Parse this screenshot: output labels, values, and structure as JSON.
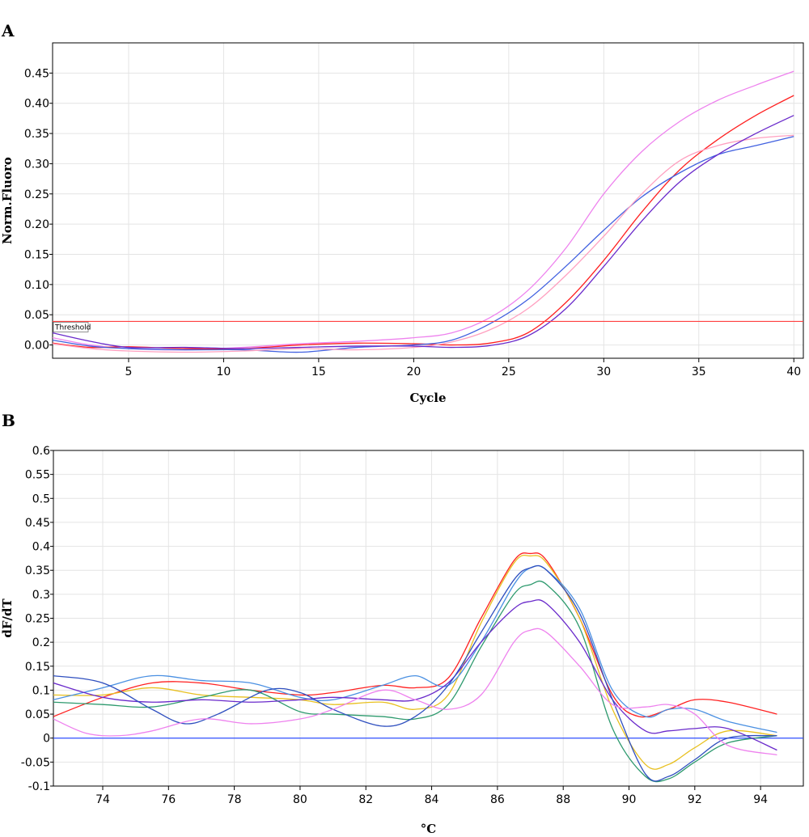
{
  "panels": {
    "a_label": "A",
    "b_label": "B"
  },
  "chart_data": [
    {
      "type": "line",
      "xlabel": "Cycle",
      "ylabel": "Norm.Fluoro",
      "xlim": [
        1,
        40.5
      ],
      "ylim": [
        -0.022,
        0.5
      ],
      "x_ticks": [
        5,
        10,
        15,
        20,
        25,
        30,
        35,
        40
      ],
      "y_ticks": [
        0.0,
        0.05,
        0.1,
        0.15,
        0.2,
        0.25,
        0.3,
        0.35,
        0.4,
        0.45
      ],
      "y_tick_labels": [
        "0.00",
        "0.05",
        "0.10",
        "0.15",
        "0.20",
        "0.25",
        "0.30",
        "0.35",
        "0.40",
        "0.45"
      ],
      "grid": true,
      "threshold": {
        "label": "Threshold",
        "value": 0.039,
        "color": "#ff4040"
      },
      "series": [
        {
          "color": "#ee82ee",
          "points": [
            [
              1,
              0.012
            ],
            [
              3,
              0.0
            ],
            [
              5,
              -0.006
            ],
            [
              8,
              -0.008
            ],
            [
              11,
              -0.004
            ],
            [
              14,
              0.002
            ],
            [
              17,
              0.006
            ],
            [
              20,
              0.012
            ],
            [
              22,
              0.02
            ],
            [
              24,
              0.045
            ],
            [
              26,
              0.09
            ],
            [
              28,
              0.16
            ],
            [
              30,
              0.25
            ],
            [
              32,
              0.32
            ],
            [
              34,
              0.37
            ],
            [
              36,
              0.405
            ],
            [
              38,
              0.43
            ],
            [
              40,
              0.453
            ]
          ]
        },
        {
          "color": "#ff2020",
          "points": [
            [
              1,
              0.003
            ],
            [
              3,
              -0.004
            ],
            [
              5,
              -0.003
            ],
            [
              8,
              -0.006
            ],
            [
              11,
              -0.006
            ],
            [
              14,
              0.0
            ],
            [
              17,
              0.003
            ],
            [
              20,
              0.002
            ],
            [
              22,
              0.0
            ],
            [
              24,
              0.003
            ],
            [
              26,
              0.02
            ],
            [
              28,
              0.07
            ],
            [
              30,
              0.14
            ],
            [
              32,
              0.22
            ],
            [
              34,
              0.29
            ],
            [
              36,
              0.34
            ],
            [
              38,
              0.38
            ],
            [
              40,
              0.413
            ]
          ]
        },
        {
          "color": "#4060e0",
          "points": [
            [
              1,
              0.008
            ],
            [
              3,
              -0.002
            ],
            [
              5,
              -0.006
            ],
            [
              8,
              -0.008
            ],
            [
              11,
              -0.008
            ],
            [
              14,
              -0.012
            ],
            [
              17,
              -0.004
            ],
            [
              20,
              0.0
            ],
            [
              22,
              0.008
            ],
            [
              24,
              0.035
            ],
            [
              26,
              0.075
            ],
            [
              28,
              0.13
            ],
            [
              30,
              0.19
            ],
            [
              32,
              0.245
            ],
            [
              34,
              0.285
            ],
            [
              36,
              0.315
            ],
            [
              38,
              0.33
            ],
            [
              40,
              0.345
            ]
          ]
        },
        {
          "color": "#ffa0c0",
          "points": [
            [
              1,
              0.002
            ],
            [
              3,
              -0.006
            ],
            [
              5,
              -0.01
            ],
            [
              8,
              -0.012
            ],
            [
              11,
              -0.01
            ],
            [
              14,
              -0.006
            ],
            [
              17,
              -0.008
            ],
            [
              20,
              -0.004
            ],
            [
              22,
              0.005
            ],
            [
              24,
              0.025
            ],
            [
              26,
              0.06
            ],
            [
              28,
              0.115
            ],
            [
              30,
              0.18
            ],
            [
              32,
              0.25
            ],
            [
              34,
              0.305
            ],
            [
              36,
              0.33
            ],
            [
              38,
              0.342
            ],
            [
              40,
              0.347
            ]
          ]
        },
        {
          "color": "#6a2acb",
          "points": [
            [
              1,
              0.02
            ],
            [
              3,
              0.006
            ],
            [
              5,
              -0.004
            ],
            [
              8,
              -0.004
            ],
            [
              11,
              -0.006
            ],
            [
              14,
              -0.004
            ],
            [
              17,
              -0.002
            ],
            [
              20,
              -0.002
            ],
            [
              22,
              -0.004
            ],
            [
              24,
              -0.001
            ],
            [
              26,
              0.015
            ],
            [
              28,
              0.06
            ],
            [
              30,
              0.13
            ],
            [
              32,
              0.205
            ],
            [
              34,
              0.27
            ],
            [
              36,
              0.315
            ],
            [
              38,
              0.35
            ],
            [
              40,
              0.38
            ]
          ]
        }
      ]
    },
    {
      "type": "line",
      "xlabel": "°C",
      "ylabel": "dF/dT",
      "xlim": [
        72.5,
        95.3
      ],
      "ylim": [
        -0.1,
        0.6
      ],
      "x_ticks": [
        74,
        76,
        78,
        80,
        82,
        84,
        86,
        88,
        90,
        92,
        94
      ],
      "y_ticks": [
        -0.1,
        -0.05,
        0,
        0.05,
        0.1,
        0.15,
        0.2,
        0.25,
        0.3,
        0.35,
        0.4,
        0.45,
        0.5,
        0.55,
        0.6
      ],
      "y_tick_labels": [
        "-0.1",
        "-0.05",
        "0",
        "0.05",
        "0.1",
        "0.15",
        "0.2",
        "0.25",
        "0.3",
        "0.35",
        "0.4",
        "0.45",
        "0.5",
        "0.55",
        "0.6"
      ],
      "grid": true,
      "baseline": {
        "value": 0,
        "color": "#3050ff"
      },
      "series": [
        {
          "color": "#ff2020",
          "points": [
            [
              72.5,
              0.045
            ],
            [
              74,
              0.085
            ],
            [
              75.5,
              0.115
            ],
            [
              77,
              0.115
            ],
            [
              78.5,
              0.1
            ],
            [
              80,
              0.09
            ],
            [
              81,
              0.095
            ],
            [
              82.5,
              0.11
            ],
            [
              83.5,
              0.105
            ],
            [
              84.5,
              0.125
            ],
            [
              85.5,
              0.25
            ],
            [
              86.5,
              0.37
            ],
            [
              87,
              0.385
            ],
            [
              87.5,
              0.37
            ],
            [
              88.5,
              0.25
            ],
            [
              89.5,
              0.09
            ],
            [
              90.3,
              0.045
            ],
            [
              91.2,
              0.06
            ],
            [
              92,
              0.08
            ],
            [
              93,
              0.075
            ],
            [
              94.5,
              0.05
            ]
          ]
        },
        {
          "color": "#e8c020",
          "points": [
            [
              72.5,
              0.09
            ],
            [
              74,
              0.09
            ],
            [
              75.5,
              0.105
            ],
            [
              77,
              0.09
            ],
            [
              78.5,
              0.085
            ],
            [
              80,
              0.08
            ],
            [
              81,
              0.07
            ],
            [
              82.5,
              0.075
            ],
            [
              83.5,
              0.06
            ],
            [
              84.5,
              0.09
            ],
            [
              85.5,
              0.24
            ],
            [
              86.5,
              0.365
            ],
            [
              87,
              0.38
            ],
            [
              87.5,
              0.365
            ],
            [
              88.5,
              0.25
            ],
            [
              89.5,
              0.06
            ],
            [
              90.5,
              -0.055
            ],
            [
              91.2,
              -0.055
            ],
            [
              92,
              -0.02
            ],
            [
              93,
              0.015
            ],
            [
              94.5,
              0.005
            ]
          ]
        },
        {
          "color": "#4a90e2",
          "points": [
            [
              72.5,
              0.08
            ],
            [
              74,
              0.105
            ],
            [
              75.5,
              0.13
            ],
            [
              77,
              0.12
            ],
            [
              78.5,
              0.115
            ],
            [
              80,
              0.085
            ],
            [
              81,
              0.08
            ],
            [
              82.5,
              0.11
            ],
            [
              83.5,
              0.13
            ],
            [
              84.5,
              0.11
            ],
            [
              85.5,
              0.2
            ],
            [
              86.5,
              0.32
            ],
            [
              87,
              0.355
            ],
            [
              87.5,
              0.35
            ],
            [
              88.5,
              0.27
            ],
            [
              89.5,
              0.1
            ],
            [
              90.5,
              0.045
            ],
            [
              91.2,
              0.06
            ],
            [
              92,
              0.06
            ],
            [
              93,
              0.035
            ],
            [
              94.5,
              0.012
            ]
          ]
        },
        {
          "color": "#2e9a6e",
          "points": [
            [
              72.5,
              0.075
            ],
            [
              74,
              0.07
            ],
            [
              75.5,
              0.065
            ],
            [
              77,
              0.085
            ],
            [
              78.5,
              0.1
            ],
            [
              80,
              0.055
            ],
            [
              81,
              0.05
            ],
            [
              82.5,
              0.045
            ],
            [
              83.5,
              0.04
            ],
            [
              84.5,
              0.07
            ],
            [
              85.5,
              0.19
            ],
            [
              86.5,
              0.3
            ],
            [
              87,
              0.32
            ],
            [
              87.5,
              0.32
            ],
            [
              88.5,
              0.23
            ],
            [
              89.5,
              0.02
            ],
            [
              90.5,
              -0.08
            ],
            [
              91.2,
              -0.085
            ],
            [
              92,
              -0.05
            ],
            [
              93,
              -0.01
            ],
            [
              94.5,
              0.005
            ]
          ]
        },
        {
          "color": "#6a2acb",
          "points": [
            [
              72.5,
              0.115
            ],
            [
              74,
              0.085
            ],
            [
              75.5,
              0.075
            ],
            [
              77,
              0.08
            ],
            [
              78.5,
              0.075
            ],
            [
              80,
              0.08
            ],
            [
              81,
              0.085
            ],
            [
              82.5,
              0.08
            ],
            [
              83.5,
              0.08
            ],
            [
              84.5,
              0.115
            ],
            [
              85.5,
              0.2
            ],
            [
              86.5,
              0.27
            ],
            [
              87,
              0.285
            ],
            [
              87.5,
              0.28
            ],
            [
              88.5,
              0.2
            ],
            [
              89.5,
              0.08
            ],
            [
              90.5,
              0.015
            ],
            [
              91.2,
              0.015
            ],
            [
              92,
              0.02
            ],
            [
              93,
              0.02
            ],
            [
              94.5,
              -0.025
            ]
          ]
        },
        {
          "color": "#2f4fbf",
          "points": [
            [
              72.5,
              0.13
            ],
            [
              74,
              0.115
            ],
            [
              75.5,
              0.06
            ],
            [
              76.5,
              0.03
            ],
            [
              77.5,
              0.05
            ],
            [
              79,
              0.1
            ],
            [
              80,
              0.095
            ],
            [
              81,
              0.06
            ],
            [
              82.5,
              0.025
            ],
            [
              83.5,
              0.045
            ],
            [
              84.5,
              0.11
            ],
            [
              85.5,
              0.22
            ],
            [
              86.5,
              0.33
            ],
            [
              87,
              0.355
            ],
            [
              87.5,
              0.35
            ],
            [
              88.5,
              0.26
            ],
            [
              89.5,
              0.08
            ],
            [
              90.5,
              -0.075
            ],
            [
              91.2,
              -0.08
            ],
            [
              92,
              -0.045
            ],
            [
              93,
              0.0
            ],
            [
              94.5,
              0.005
            ]
          ]
        },
        {
          "color": "#ee82ee",
          "points": [
            [
              72.5,
              0.04
            ],
            [
              73.5,
              0.01
            ],
            [
              74.5,
              0.005
            ],
            [
              75.5,
              0.015
            ],
            [
              77,
              0.04
            ],
            [
              78.5,
              0.03
            ],
            [
              80,
              0.04
            ],
            [
              81,
              0.06
            ],
            [
              82.5,
              0.1
            ],
            [
              83.5,
              0.08
            ],
            [
              84.5,
              0.06
            ],
            [
              85.5,
              0.09
            ],
            [
              86.5,
              0.2
            ],
            [
              87,
              0.225
            ],
            [
              87.5,
              0.22
            ],
            [
              88.5,
              0.15
            ],
            [
              89.5,
              0.07
            ],
            [
              90.5,
              0.065
            ],
            [
              91.2,
              0.07
            ],
            [
              92,
              0.05
            ],
            [
              93,
              -0.015
            ],
            [
              94.5,
              -0.035
            ]
          ]
        }
      ]
    }
  ]
}
